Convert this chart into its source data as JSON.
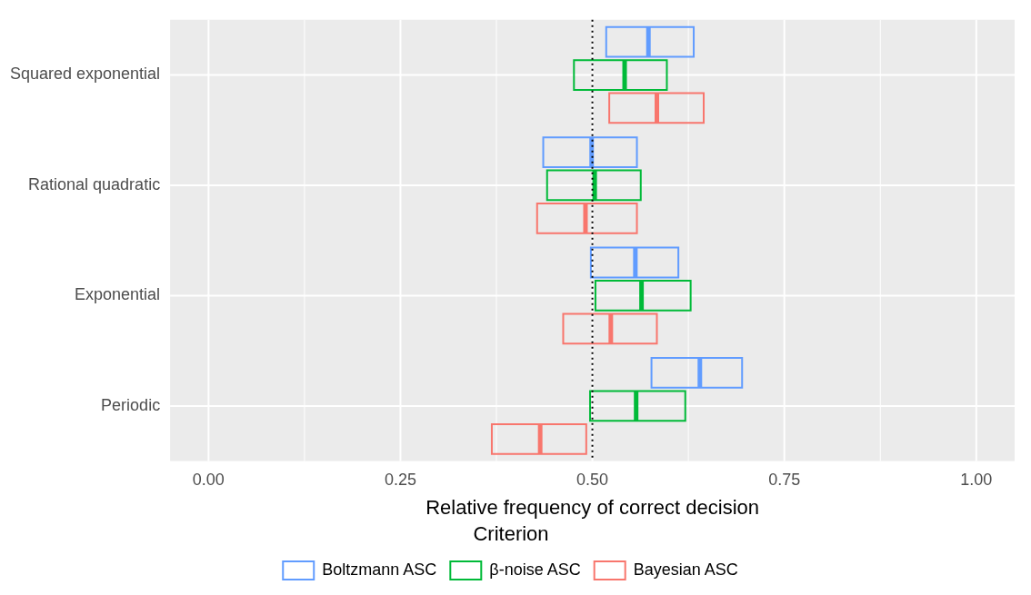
{
  "chart_data": {
    "type": "box",
    "orientation": "horizontal",
    "xlabel": "Relative frequency of correct decision",
    "legend_title": "Criterion",
    "legend": "bottom",
    "grid": true,
    "categories": [
      "Squared exponential",
      "Rational quadratic",
      "Exponential",
      "Periodic"
    ],
    "xlim": [
      -0.05,
      1.05
    ],
    "xticks": [
      {
        "value": 0,
        "label": "0.00"
      },
      {
        "value": 0.125,
        "label": null
      },
      {
        "value": 0.25,
        "label": "0.25"
      },
      {
        "value": 0.375,
        "label": null
      },
      {
        "value": 0.5,
        "label": "0.50"
      },
      {
        "value": 0.625,
        "label": null
      },
      {
        "value": 0.75,
        "label": "0.75"
      },
      {
        "value": 0.875,
        "label": null
      },
      {
        "value": 1,
        "label": "1.00"
      }
    ],
    "ref_lines": [
      {
        "axis": "x",
        "value": 0.5,
        "color": "#000000",
        "line_style": "dotted"
      }
    ],
    "series": [
      {
        "name": "Boltzmann ASC",
        "color": "#619cff",
        "boxes": [
          {
            "low": 0.518,
            "q1": 0.518,
            "median": 0.573,
            "q3": 0.632,
            "high": 0.632
          },
          {
            "low": 0.436,
            "q1": 0.436,
            "median": 0.499,
            "q3": 0.558,
            "high": 0.558
          },
          {
            "low": 0.498,
            "q1": 0.498,
            "median": 0.556,
            "q3": 0.612,
            "high": 0.612
          },
          {
            "low": 0.577,
            "q1": 0.577,
            "median": 0.64,
            "q3": 0.695,
            "high": 0.695
          }
        ]
      },
      {
        "name": "β-noise ASC",
        "color": "#00ba38",
        "boxes": [
          {
            "low": 0.476,
            "q1": 0.476,
            "median": 0.542,
            "q3": 0.597,
            "high": 0.597
          },
          {
            "low": 0.441,
            "q1": 0.441,
            "median": 0.503,
            "q3": 0.563,
            "high": 0.563
          },
          {
            "low": 0.504,
            "q1": 0.504,
            "median": 0.564,
            "q3": 0.628,
            "high": 0.628
          },
          {
            "low": 0.497,
            "q1": 0.497,
            "median": 0.557,
            "q3": 0.621,
            "high": 0.621
          }
        ]
      },
      {
        "name": "Bayesian ASC",
        "color": "#f8766d",
        "boxes": [
          {
            "low": 0.522,
            "q1": 0.522,
            "median": 0.584,
            "q3": 0.645,
            "high": 0.645
          },
          {
            "low": 0.428,
            "q1": 0.428,
            "median": 0.491,
            "q3": 0.558,
            "high": 0.558
          },
          {
            "low": 0.462,
            "q1": 0.462,
            "median": 0.524,
            "q3": 0.584,
            "high": 0.584
          },
          {
            "low": 0.369,
            "q1": 0.369,
            "median": 0.432,
            "q3": 0.492,
            "high": 0.492
          }
        ]
      }
    ]
  }
}
